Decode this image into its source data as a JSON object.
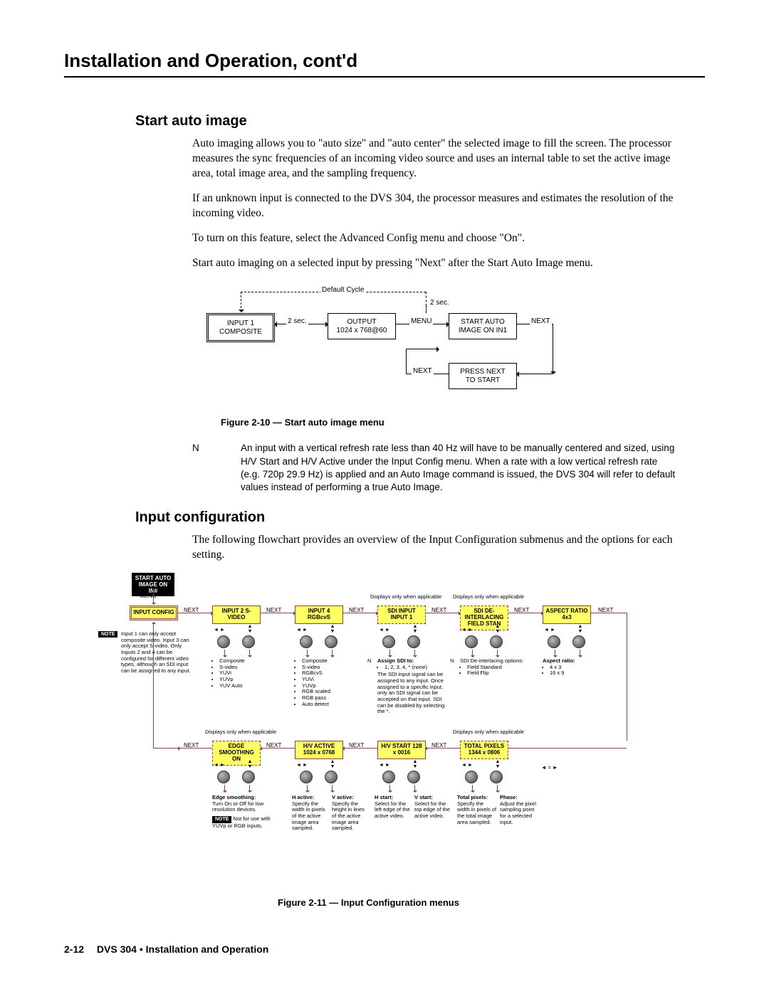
{
  "chapter_title": "Installation and Operation, cont'd",
  "s1": {
    "heading": "Start auto image",
    "p1": "Auto imaging allows you to \"auto size\" and \"auto center\" the selected image to fill the  screen.  The processor measures the sync frequencies of an incoming video source and uses an internal table to set the active image area, total image area, and the sampling frequency.",
    "p2": "If an unknown input is connected to the DVS 304, the processor measures and estimates the resolution of the incoming video.",
    "p3": "To turn on this feature, select the Advanced Config menu and choose \"On\".",
    "p4": "Start auto imaging on a selected input by pressing \"Next\" after the Start Auto Image menu."
  },
  "flow1": {
    "default_cycle": "Default Cycle",
    "two_sec": "2 sec.",
    "b1_l1": "INPUT 1",
    "b1_l2": "COMPOSITE",
    "b2_l1": "OUTPUT",
    "b2_l2": "1024 x 768@60",
    "b3_l1": "START AUTO",
    "b3_l2": "IMAGE ON IN1",
    "b4_l1": "PRESS NEXT",
    "b4_l2": "TO START",
    "menu": "MENU",
    "next": "NEXT",
    "caption": "Figure 2-10 — Start auto image menu",
    "colors": {
      "box_border": "#000000",
      "line": "#000000",
      "bg": "#ffffff"
    }
  },
  "note": {
    "tag": "N",
    "text": "An input with a vertical refresh rate less than 40 Hz will have to be manually centered and sized, using H/V Start and H/V Active under the Input Config menu.  When a rate with a low vertical refresh rate (e.g. 720p 29.9 Hz) is applied and an Auto Image command is issued, the DVS 304 will refer to default values instead of performing a true Auto Image."
  },
  "s2": {
    "heading": "Input configuration",
    "p1": "The following flowchart provides an overview of the Input Configuration submenus and the options for each setting."
  },
  "flow2": {
    "colors": {
      "box_fill": "#ffff66",
      "box_border": "#884455",
      "line": "#884455",
      "black": "#000000"
    },
    "top_black_l1": "START AUTO",
    "top_black_l2": "IMAGE ON IN#",
    "menu": "MENU",
    "next": "NEXT",
    "row1": {
      "b1": "INPUT CONFIG",
      "b2": "INPUT 2 S-VIDEO",
      "b3": "INPUT 4 RGBcvS",
      "b4": "SDI INPUT INPUT 1",
      "b5": "SDI DE-INTERLACING FIELD STAN",
      "b6": "ASPECT RATIO 4x3",
      "disp_only": "Displays only when applicable"
    },
    "notes_col1": {
      "tag": "NOTE",
      "text": "Input 1 can only accept composite video. Input 3 can only accept S-video. Only Inputs 2 and 4 can be configured for different video types, although an SDI input can be assigned to any input."
    },
    "opts_col2": [
      "Composite",
      "S-video",
      "YUVi",
      "YUVp",
      "YUV Auto"
    ],
    "opts_col3": [
      "Composite",
      "S-video",
      "RGBcvS",
      "YUVi",
      "YUVp",
      "RGB scaled",
      "RGB pass",
      "Auto detect"
    ],
    "opts_col4_tag": "N",
    "opts_col4_lead": "Assign SDI to:",
    "opts_col4": [
      "1, 2, 3, 4, * (none)"
    ],
    "opts_col4_text": "The SDI input signal can be assigned to any input. Once assigned to a specific input, only an SDI signal can be accepted on that input. SDI can be disabled by selecting the *.",
    "opts_col5_tag": "N",
    "opts_col5_lead": "SDI De-interlacing options:",
    "opts_col5": [
      "Field Standard",
      "Field Flip"
    ],
    "opts_col6_lead": "Aspect ratio:",
    "opts_col6": [
      "4 x 3",
      "16 x 9"
    ],
    "row2": {
      "b1": "EDGE SMOOTHING ON",
      "b2": "H/V ACTIVE 1024 x 0768",
      "b3": "H/V START 128 x 0016",
      "b4": "TOTAL PIXELS 1344 x 0806",
      "disp_only": "Displays only when applicable"
    },
    "desc_r2_1_lead": "Edge smoothing:",
    "desc_r2_1": "Turn On or Off for low resolution devices.",
    "desc_r2_1_note_tag": "NOTE",
    "desc_r2_1_note": "Not for use with YUVp or RGB inputs.",
    "desc_r2_2a_lead": "H active:",
    "desc_r2_2a": "Specify the width in pixels of the active image area sampled.",
    "desc_r2_2b_lead": "V active:",
    "desc_r2_2b": "Specify the height in lines of the active image area sampled.",
    "desc_r2_3a_lead": "H start:",
    "desc_r2_3a": "Select for the left edge of the active video.",
    "desc_r2_3b_lead": "V start:",
    "desc_r2_3b": "Select for the top edge of the active video.",
    "desc_r2_4a_lead": "Total pixels:",
    "desc_r2_4a": "Specify the width in pixels of the total image area sampled.",
    "desc_r2_4b_lead": "Phase:",
    "desc_r2_4b": "Adjust the pixel sampling point for a selected input.",
    "caption": "Figure 2-11 — Input Configuration menus"
  },
  "footer": {
    "page": "2-12",
    "product": "DVS 304  •  Installation and Operation"
  }
}
